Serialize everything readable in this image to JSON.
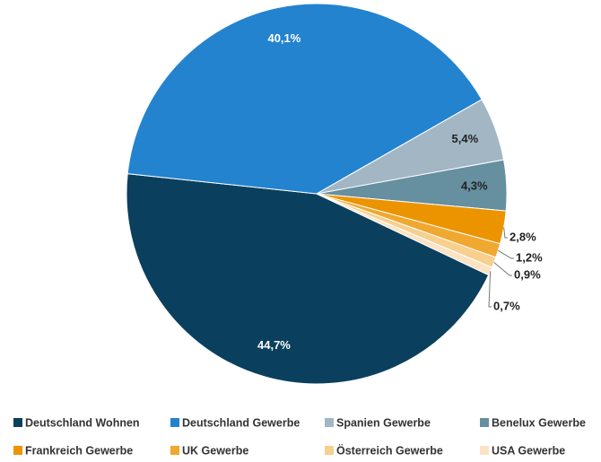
{
  "chart_data": {
    "type": "pie",
    "categories": [
      "Deutschland Wohnen",
      "Deutschland Gewerbe",
      "Spanien Gewerbe",
      "Benelux Gewerbe",
      "Frankreich Gewerbe",
      "UK Gewerbe",
      "Österreich Gewerbe",
      "USA Gewerbe"
    ],
    "values": [
      44.7,
      40.1,
      5.4,
      4.3,
      2.8,
      1.2,
      0.9,
      0.7
    ],
    "value_labels": [
      "44,7%",
      "40,1%",
      "5,4%",
      "4,3%",
      "2,8%",
      "1,2%",
      "0,9%",
      "0,7%"
    ],
    "colors": [
      "#0b3f5e",
      "#2383cf",
      "#a2b6c4",
      "#668fa0",
      "#ec9400",
      "#f0a830",
      "#f7cf8f",
      "#fbe3c3"
    ],
    "legend": "bottom"
  }
}
